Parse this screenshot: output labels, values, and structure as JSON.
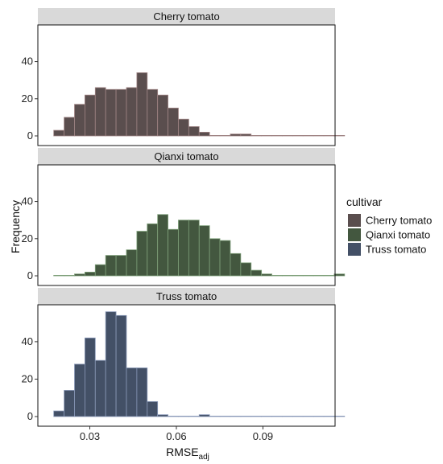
{
  "chart_data": {
    "type": "bar",
    "xlabel": "RMSE",
    "xlabel_sub": "adj",
    "ylabel": "Frequency",
    "xlim": [
      0.012,
      0.115
    ],
    "ylim": [
      0,
      58
    ],
    "x_ticks": [
      0.03,
      0.06,
      0.09
    ],
    "x_tick_labels": [
      "0.03",
      "0.06",
      "0.09"
    ],
    "y_ticks": [
      0,
      20,
      40
    ],
    "y_tick_labels": [
      "0",
      "20",
      "40"
    ],
    "bin_start": 0.0175,
    "bin_width": 0.0036,
    "legend": {
      "title": "cultivar",
      "position": "right",
      "entries": [
        {
          "label": "Cherry tomato",
          "color": "#5a4e4e"
        },
        {
          "label": "Qianxi tomato",
          "color": "#43573f"
        },
        {
          "label": "Truss tomato",
          "color": "#435066"
        }
      ]
    },
    "panels": [
      {
        "name": "Cherry tomato",
        "fill": "#5a4e4e",
        "outline": "#a08585",
        "values": [
          3,
          10,
          17,
          22,
          26,
          25,
          25,
          26,
          34,
          25,
          22,
          15,
          9,
          5,
          2,
          0,
          0,
          1,
          1,
          0,
          0,
          0,
          0,
          0,
          0,
          0,
          0,
          0
        ]
      },
      {
        "name": "Qianxi tomato",
        "fill": "#43573f",
        "outline": "#7fa07a",
        "values": [
          0,
          0,
          1,
          2,
          6,
          11,
          11,
          14,
          24,
          28,
          33,
          25,
          30,
          30,
          27,
          20,
          19,
          12,
          7,
          3,
          1,
          0,
          0,
          0,
          0,
          0,
          0,
          1
        ]
      },
      {
        "name": "Truss tomato",
        "fill": "#435066",
        "outline": "#8a99b8",
        "values": [
          3,
          14,
          28,
          42,
          30,
          56,
          54,
          26,
          26,
          8,
          1,
          0,
          0,
          0,
          1,
          0,
          0,
          0,
          0,
          0,
          0,
          0,
          0,
          0,
          0,
          0,
          0,
          0
        ]
      }
    ]
  }
}
